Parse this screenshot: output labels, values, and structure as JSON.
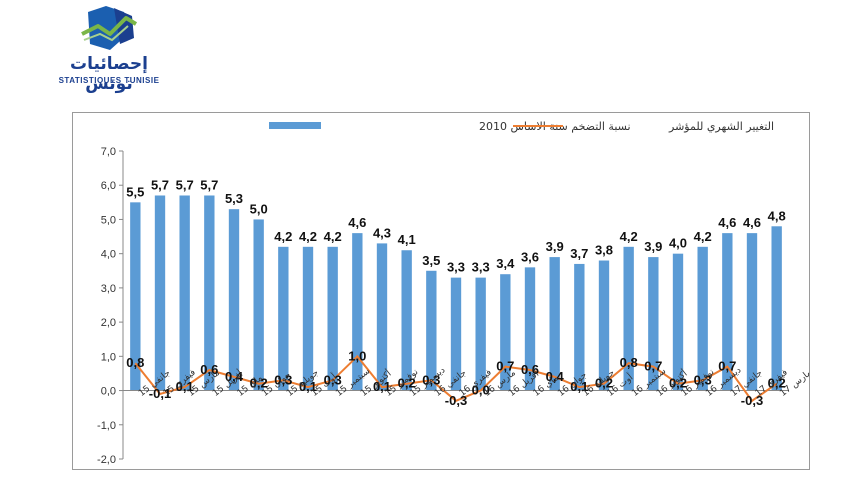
{
  "logo": {
    "arabic_text": "إحصائيات تونس",
    "latin_text": "STATISTIQUES TUNISIE",
    "colors": {
      "blue": "#1b5fb0",
      "green": "#7ab648",
      "navy": "#1b3f8f"
    }
  },
  "chart_data": {
    "type": "bar",
    "categories": [
      "جانفي 15",
      "فيفري 15",
      "مارس 15",
      "أفريل 15",
      "ماي 15",
      "جوان 15",
      "جويلية 15",
      "أوت 15",
      "سبتمبر 15",
      "أكتوبر 15",
      "نوفمبر 15",
      "ديسمبر 15",
      "جانفي 16",
      "فيفري 16",
      "مارس 16",
      "أفريل 16",
      "ماي 16",
      "جوان 16",
      "جويلية 16",
      "أوت 16",
      "سبتمبر 16",
      "أكتوبر 16",
      "نوفمبر 16",
      "ديسمبر 16",
      "جانفي 17",
      "فيفري 17",
      "مارس 17"
    ],
    "series": [
      {
        "name": "نسبة التضخم سنة الاساس 2010",
        "type": "bar",
        "color": "#5b9bd5",
        "values": [
          5.5,
          5.7,
          5.7,
          5.7,
          5.3,
          5.0,
          4.2,
          4.2,
          4.2,
          4.6,
          4.3,
          4.1,
          3.5,
          3.3,
          3.3,
          3.4,
          3.6,
          3.9,
          3.7,
          3.8,
          4.2,
          3.9,
          4.0,
          4.2,
          4.6,
          4.6,
          4.8
        ],
        "labels": [
          "5,5",
          "5,7",
          "5,7",
          "5,7",
          "5,3",
          "5,0",
          "4,2",
          "4,2",
          "4,2",
          "4,6",
          "4,3",
          "4,1",
          "3,5",
          "3,3",
          "3,3",
          "3,4",
          "3,6",
          "3,9",
          "3,7",
          "3,8",
          "4,2",
          "3,9",
          "4,0",
          "4,2",
          "4,6",
          "4,6",
          "4,8"
        ]
      },
      {
        "name": "التغيير الشهري للمؤشر",
        "type": "line",
        "color": "#ed7d31",
        "values": [
          0.8,
          -0.1,
          0.1,
          0.6,
          0.4,
          0.2,
          0.3,
          0.1,
          0.3,
          1.0,
          0.1,
          0.2,
          0.3,
          -0.3,
          0.0,
          0.7,
          0.6,
          0.4,
          0.1,
          0.2,
          0.8,
          0.7,
          0.2,
          0.3,
          0.7,
          -0.3,
          0.2
        ],
        "labels": [
          "0,8",
          "-0,1",
          "0,1",
          "0,6",
          "0,4",
          "0,2",
          "0,3",
          "0,1",
          "0,3",
          "1,0",
          "0,1",
          "0,2",
          "0,3",
          "-0,3",
          "0,0",
          "0,7",
          "0,6",
          "0,4",
          "0,1",
          "0,2",
          "0,8",
          "0,7",
          "0,2",
          "0,3",
          "0,7",
          "-0,3",
          "0,2"
        ]
      }
    ],
    "ylim": [
      -2.0,
      7.0
    ],
    "yticks": [
      "-2,0",
      "-1,0",
      "0,0",
      "1,0",
      "2,0",
      "3,0",
      "4,0",
      "5,0",
      "6,0",
      "7,0"
    ],
    "grid": false,
    "legend_position": "top"
  }
}
